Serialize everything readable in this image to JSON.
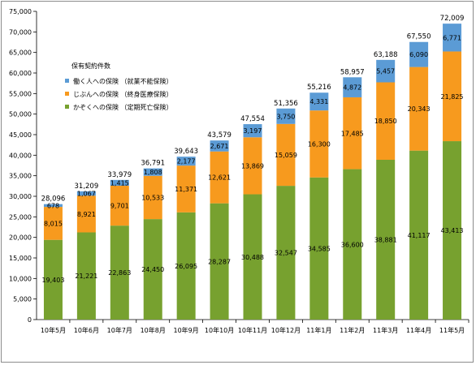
{
  "chart_data": {
    "type": "bar",
    "stacked": true,
    "categories": [
      "10年5月",
      "10年6月",
      "10年7月",
      "10年8月",
      "10年9月",
      "10年10月",
      "10年11月",
      "10年12月",
      "11年1月",
      "11年2月",
      "11年3月",
      "11年4月",
      "11年5月"
    ],
    "series": [
      {
        "name": "かぞくへの保険 （定期死亡保険）",
        "color": "#77A12F",
        "values": [
          19403,
          21221,
          22863,
          24450,
          26095,
          28287,
          30488,
          32547,
          34585,
          36600,
          38881,
          41117,
          43413
        ],
        "labels": [
          "19,403",
          "21,221",
          "22,863",
          "24,450",
          "26,095",
          "28,287",
          "30,488",
          "32,547",
          "34,585",
          "36,600",
          "38,881",
          "41,117",
          "43,413"
        ]
      },
      {
        "name": "じぶんへの保険 （終身医療保険）",
        "color": "#F79A1E",
        "values": [
          8015,
          8921,
          9701,
          10533,
          11371,
          12621,
          13869,
          15059,
          16300,
          17485,
          18850,
          20343,
          21825
        ],
        "labels": [
          "8,015",
          "8,921",
          "9,701",
          "10,533",
          "11,371",
          "12,621",
          "13,869",
          "15,059",
          "16,300",
          "17,485",
          "18,850",
          "20,343",
          "21,825"
        ]
      },
      {
        "name": "働く人への保険 （就業不能保険）",
        "color": "#5B9BD5",
        "values": [
          678,
          1067,
          1415,
          1808,
          2177,
          2671,
          3197,
          3750,
          4331,
          4872,
          5457,
          6090,
          6771
        ],
        "labels": [
          "678",
          "1,067",
          "1,415",
          "1,808",
          "2,177",
          "2,671",
          "3,197",
          "3,750",
          "4,331",
          "4,872",
          "5,457",
          "6,090",
          "6,771"
        ]
      }
    ],
    "totals": [
      28096,
      31209,
      33979,
      36791,
      39643,
      43579,
      47554,
      51356,
      55216,
      58957,
      63188,
      67550,
      72009
    ],
    "total_labels": [
      "28,096",
      "31,209",
      "33,979",
      "36,791",
      "39,643",
      "43,579",
      "47,554",
      "51,356",
      "55,216",
      "58,957",
      "63,188",
      "67,550",
      "72,009"
    ],
    "ylim": [
      0,
      75000
    ],
    "yticks": [
      0,
      5000,
      10000,
      15000,
      20000,
      25000,
      30000,
      35000,
      40000,
      45000,
      50000,
      55000,
      60000,
      65000,
      70000,
      75000
    ],
    "ytick_labels": [
      "0",
      "5,000",
      "10,000",
      "15,000",
      "20,000",
      "25,000",
      "30,000",
      "35,000",
      "40,000",
      "45,000",
      "50,000",
      "55,000",
      "60,000",
      "65,000",
      "70,000",
      "75,000"
    ],
    "grid": false,
    "legend": {
      "title": "保有契約件数",
      "placement": "top-left",
      "order": [
        2,
        1,
        0
      ]
    }
  }
}
